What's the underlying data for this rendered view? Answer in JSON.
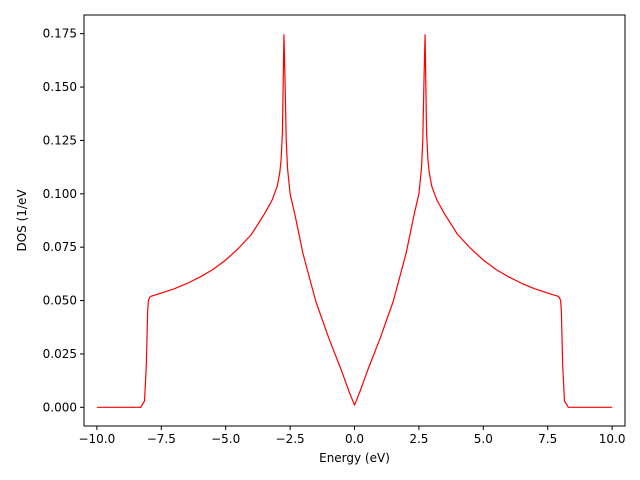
{
  "chart_data": {
    "type": "line",
    "title": "",
    "xlabel": "Energy (eV)",
    "ylabel": "DOS (1/eV",
    "xlim": [
      -10.5,
      10.5
    ],
    "ylim": [
      -0.00875,
      0.18375
    ],
    "xticks": [
      -10.0,
      -7.5,
      -5.0,
      -2.5,
      0.0,
      2.5,
      5.0,
      7.5,
      10.0
    ],
    "xtick_labels": [
      "−10.0",
      "−7.5",
      "−5.0",
      "−2.5",
      "0.0",
      "2.5",
      "5.0",
      "7.5",
      "10.0"
    ],
    "yticks": [
      0.0,
      0.025,
      0.05,
      0.075,
      0.1,
      0.125,
      0.15,
      0.175
    ],
    "ytick_labels": [
      "0.000",
      "0.025",
      "0.050",
      "0.075",
      "0.100",
      "0.125",
      "0.150",
      "0.175"
    ],
    "grid": false,
    "series": [
      {
        "color": "#ff0000",
        "x": [
          -10.0,
          -9.0,
          -8.3,
          -8.15,
          -8.08,
          -8.03,
          -8.0,
          -7.95,
          -7.9,
          -7.5,
          -7.0,
          -6.5,
          -6.0,
          -5.5,
          -5.0,
          -4.5,
          -4.0,
          -3.5,
          -3.2,
          -3.0,
          -2.9,
          -2.85,
          -2.8,
          -2.77,
          -2.74,
          -2.7,
          -2.65,
          -2.6,
          -2.5,
          -2.3,
          -2.0,
          -1.5,
          -1.0,
          -0.5,
          -0.2,
          0.0,
          0.2,
          0.5,
          1.0,
          1.5,
          2.0,
          2.3,
          2.5,
          2.6,
          2.65,
          2.7,
          2.74,
          2.77,
          2.8,
          2.85,
          2.9,
          3.0,
          3.2,
          3.5,
          4.0,
          4.5,
          5.0,
          5.5,
          6.0,
          6.5,
          7.0,
          7.5,
          7.9,
          7.95,
          8.0,
          8.03,
          8.08,
          8.15,
          8.3,
          9.0,
          10.0
        ],
        "y": [
          0.0,
          0.0,
          0.0,
          0.003,
          0.02,
          0.045,
          0.05,
          0.0515,
          0.052,
          0.0535,
          0.0555,
          0.058,
          0.061,
          0.0645,
          0.069,
          0.0745,
          0.081,
          0.0905,
          0.097,
          0.1035,
          0.11,
          0.116,
          0.128,
          0.15,
          0.1745,
          0.155,
          0.125,
          0.112,
          0.1,
          0.0895,
          0.072,
          0.0495,
          0.0325,
          0.017,
          0.007,
          0.001,
          0.007,
          0.017,
          0.0325,
          0.0495,
          0.072,
          0.0895,
          0.1,
          0.112,
          0.125,
          0.155,
          0.1745,
          0.15,
          0.128,
          0.116,
          0.11,
          0.1035,
          0.097,
          0.0905,
          0.081,
          0.0745,
          0.069,
          0.0645,
          0.061,
          0.058,
          0.0555,
          0.0535,
          0.052,
          0.0515,
          0.05,
          0.045,
          0.02,
          0.003,
          0.0,
          0.0,
          0.0
        ]
      }
    ]
  }
}
